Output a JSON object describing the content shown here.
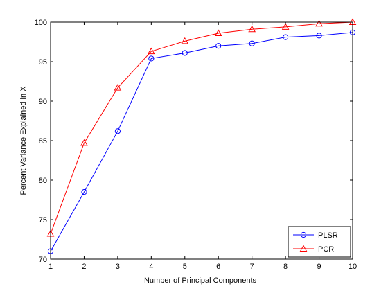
{
  "chart_data": {
    "type": "line",
    "title": "",
    "xlabel": "Number of Principal Components",
    "ylabel": "Percent Variance Explained in X",
    "x": [
      1,
      2,
      3,
      4,
      5,
      6,
      7,
      8,
      9,
      10
    ],
    "xlim": [
      1,
      10
    ],
    "ylim": [
      70,
      100
    ],
    "xticks": [
      "1",
      "2",
      "3",
      "4",
      "5",
      "6",
      "7",
      "8",
      "9",
      "10"
    ],
    "yticks": [
      "70",
      "75",
      "80",
      "85",
      "90",
      "95",
      "100"
    ],
    "grid": false,
    "legend_position": "bottom-right",
    "series": [
      {
        "name": "PLSR",
        "color": "#0000ff",
        "marker": "circle",
        "values": [
          71.0,
          78.5,
          86.2,
          95.4,
          96.1,
          97.0,
          97.3,
          98.1,
          98.3,
          98.7
        ]
      },
      {
        "name": "PCR",
        "color": "#ff0000",
        "marker": "triangle",
        "values": [
          73.2,
          84.7,
          91.7,
          96.3,
          97.6,
          98.6,
          99.1,
          99.4,
          99.8,
          100.0
        ]
      }
    ]
  }
}
